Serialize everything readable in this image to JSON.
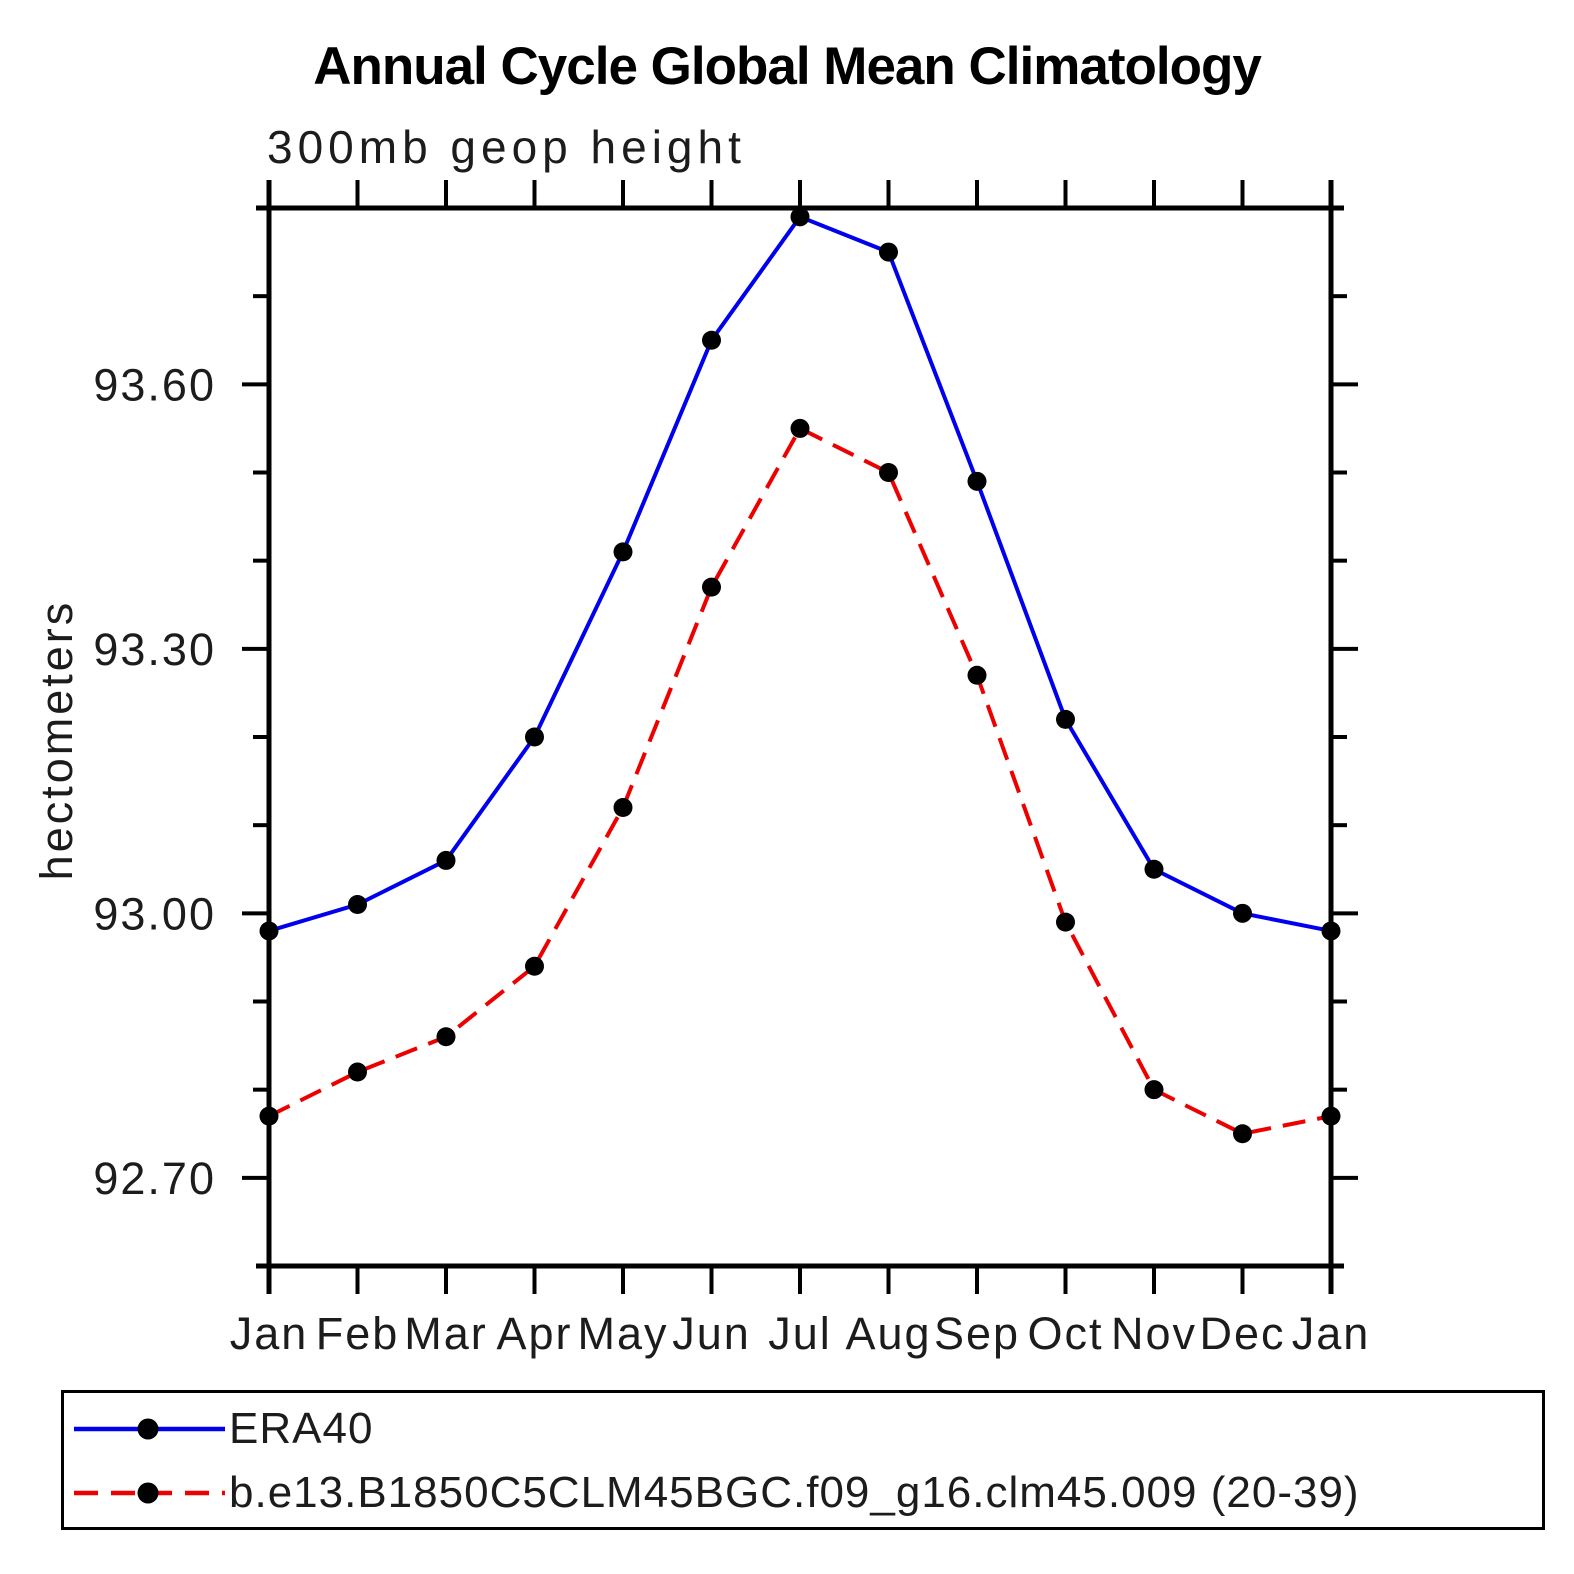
{
  "chart_data": {
    "type": "line",
    "title": "Annual Cycle Global Mean Climatology",
    "subtitle": "300mb geop height",
    "xlabel": "",
    "ylabel": "hectometers",
    "categories": [
      "Jan",
      "Feb",
      "Mar",
      "Apr",
      "May",
      "Jun",
      "Jul",
      "Aug",
      "Sep",
      "Oct",
      "Nov",
      "Dec",
      "Jan"
    ],
    "series": [
      {
        "name": "ERA40",
        "color": "#0000ee",
        "line_style": "solid",
        "marker": "filled-circle",
        "marker_color": "#000000",
        "values": [
          92.98,
          93.01,
          93.06,
          93.2,
          93.41,
          93.65,
          93.79,
          93.75,
          93.49,
          93.22,
          93.05,
          93.0,
          92.98
        ]
      },
      {
        "name": "b.e13.B1850C5CLM45BGC.f09_g16.clm45.009 (20-39)",
        "color": "#ee0000",
        "line_style": "dashed",
        "marker": "filled-circle",
        "marker_color": "#000000",
        "values": [
          92.77,
          92.82,
          92.86,
          92.94,
          93.12,
          93.37,
          93.55,
          93.5,
          93.27,
          92.99,
          92.8,
          92.75,
          92.77
        ]
      }
    ],
    "ylim": [
      92.6,
      93.8
    ],
    "y_major_ticks": [
      92.7,
      93.0,
      93.3,
      93.6
    ],
    "y_major_ticklabels": [
      "92.70",
      "93.00",
      "93.30",
      "93.60"
    ],
    "y_minor_step": 0.1,
    "grid": false,
    "legend_position": "bottom-left-box",
    "axis_color": "#000000"
  }
}
